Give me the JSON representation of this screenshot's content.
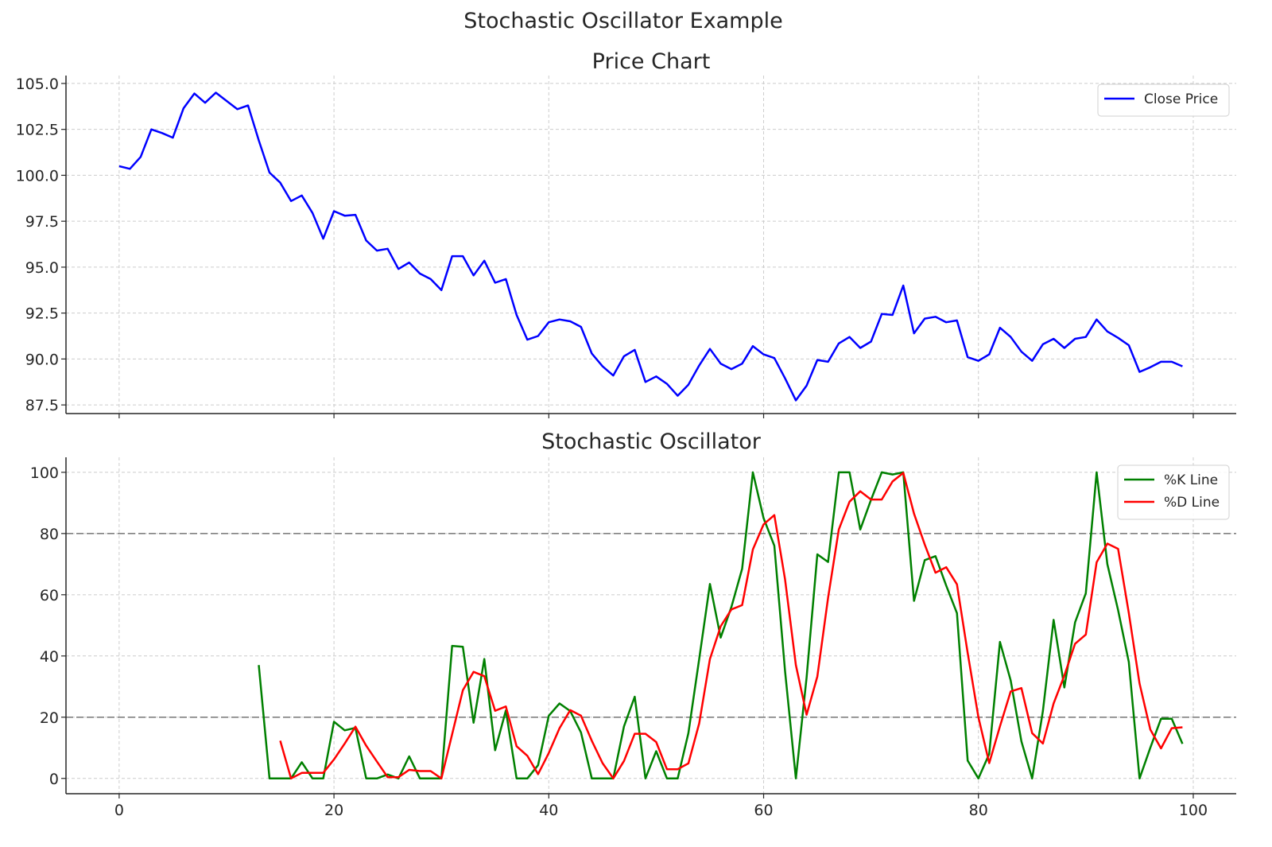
{
  "suptitle": "Stochastic Oscillator Example",
  "chart_data": [
    {
      "type": "line",
      "title": "Price Chart",
      "xlim": [
        -4.95,
        104
      ],
      "ylim": [
        87.03,
        105.43
      ],
      "xticks": [
        0,
        20,
        40,
        60,
        80,
        100
      ],
      "xtick_labels_visible": false,
      "yticks": [
        87.5,
        90.0,
        92.5,
        95.0,
        97.5,
        100.0,
        102.5,
        105.0
      ],
      "ytick_labels": [
        "87.5",
        "90.0",
        "92.5",
        "95.0",
        "97.5",
        "100.0",
        "102.5",
        "105.0"
      ],
      "grid": true,
      "legend": "top-right",
      "x_start": 0,
      "series": [
        {
          "name": "Close Price",
          "color": "#0000ff",
          "values": [
            100.5,
            100.35,
            101.0,
            102.5,
            102.3,
            102.05,
            103.65,
            104.45,
            103.95,
            104.5,
            104.05,
            103.6,
            103.8,
            101.9,
            100.15,
            99.6,
            98.6,
            98.9,
            97.95,
            96.55,
            98.05,
            97.8,
            97.85,
            96.45,
            95.9,
            96.0,
            94.9,
            95.25,
            94.65,
            94.35,
            93.75,
            95.6,
            95.6,
            94.55,
            95.35,
            94.15,
            94.35,
            92.4,
            91.05,
            91.25,
            92.0,
            92.15,
            92.05,
            91.75,
            90.3,
            89.6,
            89.1,
            90.15,
            90.5,
            88.75,
            89.05,
            88.65,
            88.0,
            88.6,
            89.65,
            90.55,
            89.75,
            89.45,
            89.75,
            90.7,
            90.25,
            90.05,
            88.95,
            87.75,
            88.55,
            89.95,
            89.85,
            90.85,
            91.2,
            90.6,
            90.95,
            92.45,
            92.4,
            94.0,
            91.4,
            92.2,
            92.3,
            92.0,
            92.1,
            90.1,
            89.9,
            90.25,
            91.7,
            91.2,
            90.4,
            89.9,
            90.8,
            91.1,
            90.6,
            91.1,
            91.2,
            92.15,
            91.5,
            91.15,
            90.75,
            89.3,
            89.55,
            89.85,
            89.85,
            89.6
          ]
        }
      ]
    },
    {
      "type": "line",
      "title": "Stochastic Oscillator",
      "xlim": [
        -4.95,
        104
      ],
      "ylim": [
        -5,
        104.9
      ],
      "xticks": [
        0,
        20,
        40,
        60,
        80,
        100
      ],
      "xtick_labels": [
        "0",
        "20",
        "40",
        "60",
        "80",
        "100"
      ],
      "yticks": [
        0,
        20,
        40,
        60,
        80,
        100
      ],
      "ytick_labels": [
        "0",
        "20",
        "40",
        "60",
        "80",
        "100"
      ],
      "grid": true,
      "legend": "top-right",
      "reference_lines": [
        {
          "y": 80,
          "color": "#808080",
          "style": "dashed"
        },
        {
          "y": 20,
          "color": "#808080",
          "style": "dashed"
        }
      ],
      "series": [
        {
          "name": "%K Line",
          "color": "#008000",
          "x_start": 13,
          "values": [
            37,
            0,
            0,
            0,
            5.3,
            0,
            0,
            18.5,
            15.7,
            16.5,
            0,
            0,
            1.3,
            0,
            7.2,
            0,
            0,
            0,
            43.3,
            43,
            18.2,
            39,
            9.2,
            22.2,
            0,
            0,
            4.3,
            20.5,
            24.5,
            22,
            15,
            0,
            0,
            0,
            17,
            26.7,
            0,
            8.9,
            0,
            0,
            14.8,
            39,
            63.5,
            46,
            56,
            68.5,
            100,
            85,
            76,
            35,
            0,
            33,
            73.2,
            70.7,
            100,
            100,
            81.3,
            91,
            100,
            99.3,
            100,
            58,
            71.3,
            72.6,
            63,
            54,
            5.8,
            0,
            8,
            44.6,
            32,
            12.1,
            0,
            22,
            51.8,
            29.7,
            51,
            60.5,
            100,
            70,
            55,
            38,
            0,
            10,
            19.5,
            19.5,
            11.3
          ]
        },
        {
          "name": "%D Line",
          "color": "#ff0000",
          "x_start": 15,
          "values": [
            12.3,
            0,
            1.8,
            1.8,
            1.8,
            6.2,
            11.4,
            16.9,
            10.7,
            5.5,
            0.4,
            0.4,
            2.8,
            2.4,
            2.4,
            0,
            14.4,
            28.8,
            34.8,
            33.4,
            22.1,
            23.5,
            10.5,
            7.4,
            1.4,
            8.3,
            16.4,
            22.3,
            20.5,
            12.3,
            5,
            0,
            5.7,
            14.6,
            14.6,
            11.9,
            3,
            3,
            4.9,
            18,
            39,
            49.7,
            55.2,
            56.6,
            74.8,
            83,
            86,
            65,
            37,
            20.8,
            33.3,
            59,
            81.3,
            90.4,
            93.8,
            91.1,
            91.1,
            97,
            99.8,
            86.5,
            76.4,
            67.2,
            69,
            63.4,
            41,
            20,
            5,
            17,
            28.4,
            29.5,
            14.8,
            11.4,
            24.5,
            33.6,
            44,
            47,
            70.6,
            76.7,
            75,
            54,
            31,
            16,
            9.8,
            16.4,
            16.7
          ]
        }
      ]
    }
  ]
}
